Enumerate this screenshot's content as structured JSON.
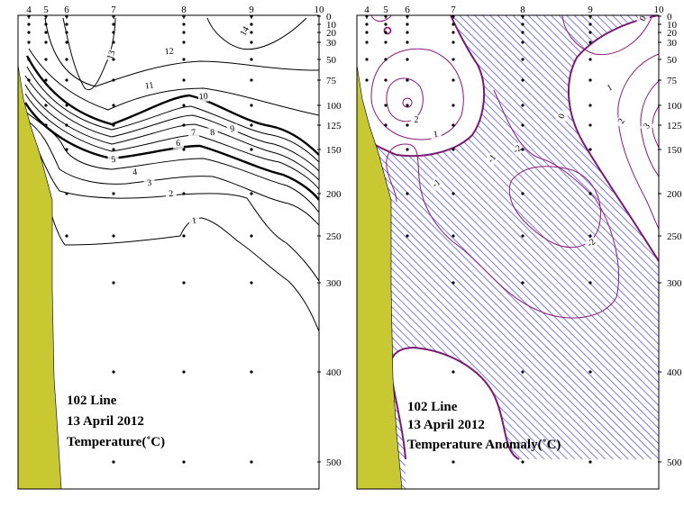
{
  "panels": [
    {
      "id": "temperature",
      "caption": [
        "102 Line",
        "13 April 2012",
        "Temperature(˚C)"
      ],
      "chart_data": {
        "type": "contour",
        "title": "Temperature(˚C)",
        "section": "102 Line",
        "date": "13 April 2012",
        "stations": [
          "4",
          "5",
          "6",
          "7",
          "8",
          "9",
          "10"
        ],
        "depth_ticks": [
          0,
          10,
          20,
          30,
          50,
          75,
          100,
          125,
          150,
          200,
          250,
          300,
          400,
          500
        ],
        "ylim": [
          0,
          525
        ],
        "contour_labels": [
          "14",
          "13",
          "12",
          "11",
          "10",
          "9",
          "8",
          "7",
          "6",
          "5",
          "4",
          "3",
          "2",
          "1"
        ],
        "levels": [
          14,
          13,
          12,
          11,
          10,
          9,
          8,
          7,
          6,
          5,
          4,
          3,
          2,
          1
        ],
        "bold_levels": [
          10,
          5
        ]
      }
    },
    {
      "id": "anomaly",
      "caption": [
        "102 Line",
        "13 April 2012",
        "Temperature Anomaly(˚C)"
      ],
      "chart_data": {
        "type": "contour",
        "title": "Temperature Anomaly(˚C)",
        "section": "102 Line",
        "date": "13 April 2012",
        "stations": [
          "4",
          "5",
          "6",
          "7",
          "8",
          "9",
          "10"
        ],
        "depth_ticks": [
          0,
          10,
          20,
          30,
          50,
          75,
          100,
          125,
          150,
          200,
          250,
          300,
          400,
          500
        ],
        "ylim": [
          0,
          525
        ],
        "contour_labels": [
          "2",
          "1",
          "0",
          "-1",
          "-2",
          "1",
          "2",
          "3",
          "0",
          "-1",
          "-2"
        ],
        "levels": [
          -2,
          -1,
          0,
          1,
          2,
          3
        ],
        "negative_hatched": true
      }
    }
  ],
  "colors": {
    "land": "#c8c832",
    "temperature_lines": "#000000",
    "anomaly_lines": "#8b1a7a",
    "anomaly_zero_line": "#7a1a70",
    "hatch": "#5c5cd8"
  }
}
